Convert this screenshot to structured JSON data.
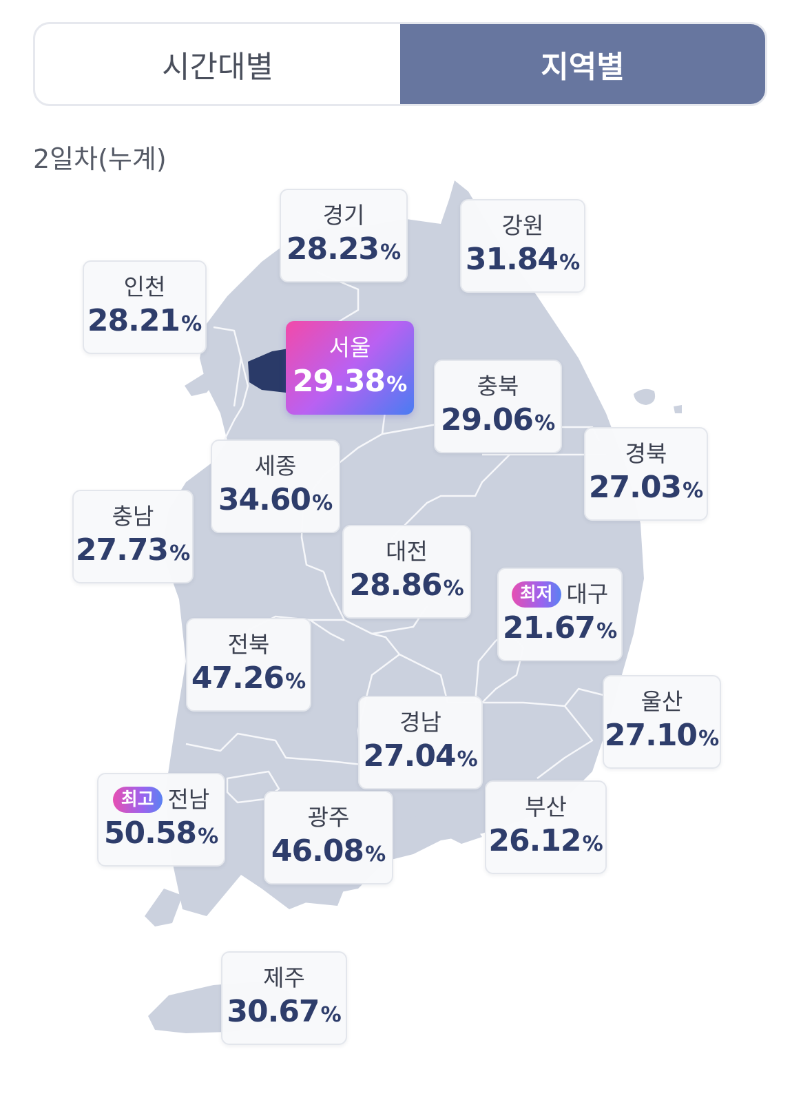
{
  "tabs": [
    {
      "label": "시간대별",
      "active": false
    },
    {
      "label": "지역별",
      "active": true
    }
  ],
  "subtitle": "2일차(누계)",
  "unit": "%",
  "colors": {
    "accent": "#67769f",
    "map_fill": "#cbd1de",
    "seoul_fill": "#2a3a68",
    "value_text": "#2e3d6b"
  },
  "regions": {
    "gyeonggi": {
      "name": "경기",
      "value": "28.23"
    },
    "gangwon": {
      "name": "강원",
      "value": "31.84"
    },
    "incheon": {
      "name": "인천",
      "value": "28.21"
    },
    "seoul": {
      "name": "서울",
      "value": "29.38"
    },
    "chungbuk": {
      "name": "충북",
      "value": "29.06"
    },
    "gyeongbuk": {
      "name": "경북",
      "value": "27.03"
    },
    "sejong": {
      "name": "세종",
      "value": "34.60"
    },
    "chungnam": {
      "name": "충남",
      "value": "27.73"
    },
    "daejeon": {
      "name": "대전",
      "value": "28.86"
    },
    "daegu": {
      "name": "대구",
      "value": "21.67",
      "badge": "최저"
    },
    "jeonbuk": {
      "name": "전북",
      "value": "47.26"
    },
    "ulsan": {
      "name": "울산",
      "value": "27.10"
    },
    "gyeongnam": {
      "name": "경남",
      "value": "27.04"
    },
    "jeonnam": {
      "name": "전남",
      "value": "50.58",
      "badge": "최고"
    },
    "gwangju": {
      "name": "광주",
      "value": "46.08"
    },
    "busan": {
      "name": "부산",
      "value": "26.12"
    },
    "jeju": {
      "name": "제주",
      "value": "30.67"
    }
  }
}
